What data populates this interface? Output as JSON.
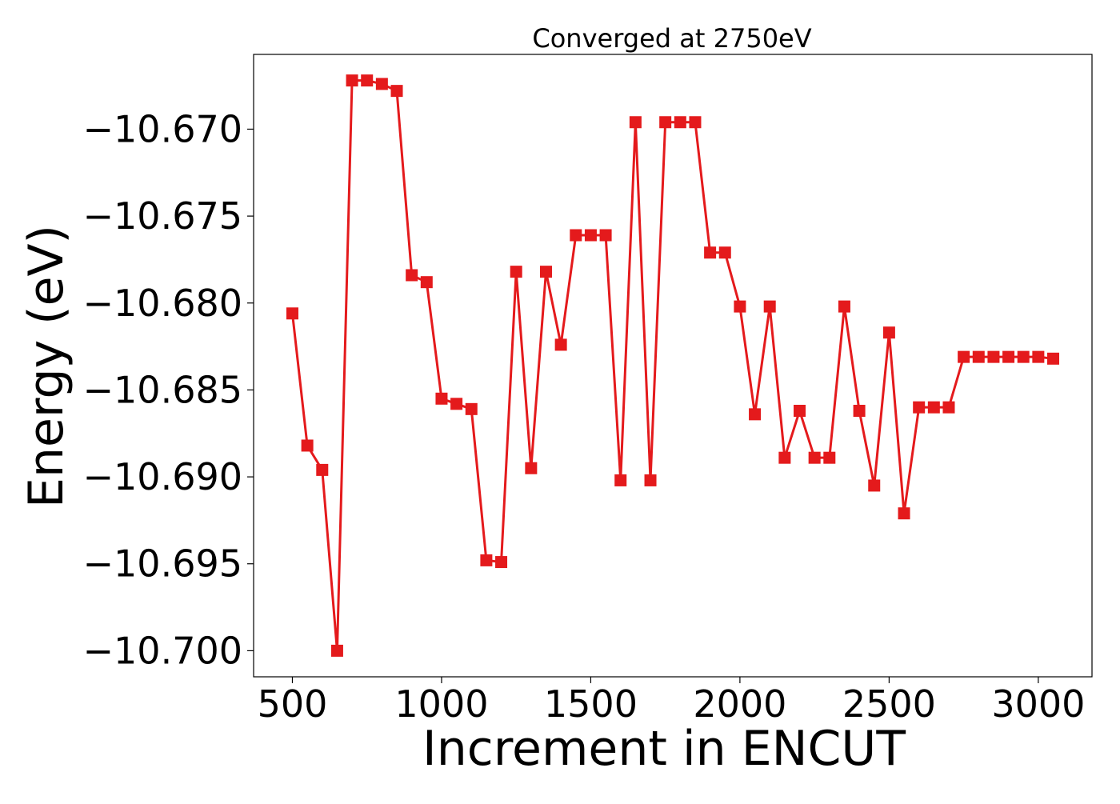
{
  "chart_data": {
    "type": "line",
    "title": "Converged at 2750eV",
    "xlabel": "Increment in ENCUT",
    "ylabel": "Energy (eV)",
    "xlim": [
      370,
      3180
    ],
    "ylim": [
      -10.7015,
      -10.6657
    ],
    "xticks": [
      500,
      1000,
      1500,
      2000,
      2500,
      3000
    ],
    "xtick_labels": [
      "500",
      "1000",
      "1500",
      "2000",
      "2500",
      "3000"
    ],
    "yticks": [
      -10.67,
      -10.675,
      -10.68,
      -10.685,
      -10.69,
      -10.695,
      -10.7
    ],
    "ytick_labels": [
      "−10.670",
      "−10.675",
      "−10.680",
      "−10.685",
      "−10.690",
      "−10.695",
      "−10.700"
    ],
    "grid": false,
    "series": [
      {
        "color": "#e41a1c",
        "marker": "square",
        "x": [
          500,
          550,
          600,
          650,
          700,
          750,
          800,
          850,
          900,
          950,
          1000,
          1050,
          1100,
          1150,
          1200,
          1250,
          1300,
          1350,
          1400,
          1450,
          1500,
          1550,
          1600,
          1650,
          1700,
          1750,
          1800,
          1850,
          1900,
          1950,
          2000,
          2050,
          2100,
          2150,
          2200,
          2250,
          2300,
          2350,
          2400,
          2450,
          2500,
          2550,
          2600,
          2650,
          2700,
          2750,
          2800,
          2850,
          2900,
          2950,
          3000,
          3050
        ],
        "y": [
          -10.6806,
          -10.6882,
          -10.6896,
          -10.7,
          -10.6672,
          -10.6672,
          -10.6674,
          -10.6678,
          -10.6784,
          -10.6788,
          -10.6855,
          -10.6858,
          -10.6861,
          -10.6948,
          -10.6949,
          -10.6782,
          -10.6895,
          -10.6782,
          -10.6824,
          -10.6761,
          -10.6761,
          -10.6761,
          -10.6902,
          -10.6696,
          -10.6902,
          -10.6696,
          -10.6696,
          -10.6696,
          -10.6771,
          -10.6771,
          -10.6802,
          -10.6864,
          -10.6802,
          -10.6889,
          -10.6862,
          -10.6889,
          -10.6889,
          -10.6802,
          -10.6862,
          -10.6905,
          -10.6817,
          -10.6921,
          -10.686,
          -10.686,
          -10.686,
          -10.6831,
          -10.6831,
          -10.6831,
          -10.6831,
          -10.6831,
          -10.6831,
          -10.6832
        ]
      }
    ]
  }
}
